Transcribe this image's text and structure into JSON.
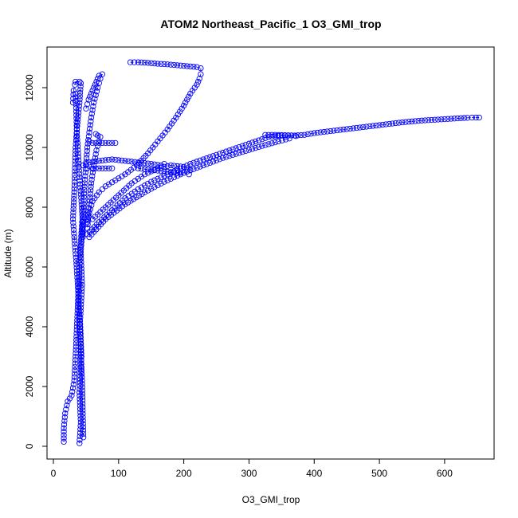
{
  "chart_data": {
    "type": "scatter",
    "title": "ATOM2 Northeast_Pacific_1 O3_GMI_trop",
    "xlabel": "O3_GMI_trop",
    "ylabel": "Altitude (m)",
    "xlim": [
      0,
      660
    ],
    "ylim": [
      0,
      13000
    ],
    "x_ticks": [
      0,
      100,
      200,
      300,
      400,
      500,
      600
    ],
    "y_ticks": [
      0,
      2000,
      4000,
      6000,
      8000,
      10000,
      12000
    ],
    "grid": false,
    "legend": "none",
    "marker": "open-circle",
    "color": "#0000ff",
    "series": [
      {
        "values": [
          [
            40,
            100
          ],
          [
            42,
            800
          ],
          [
            40,
            1800
          ],
          [
            43,
            3000
          ],
          [
            41,
            4200
          ],
          [
            44,
            5400
          ],
          [
            42,
            6500
          ],
          [
            45,
            7400
          ],
          [
            43,
            8200
          ],
          [
            40,
            9000
          ],
          [
            38,
            9800
          ],
          [
            36,
            10500
          ],
          [
            35,
            11200
          ],
          [
            34,
            11800
          ]
        ]
      },
      {
        "values": [
          [
            16,
            150
          ],
          [
            16,
            600
          ],
          [
            18,
            1100
          ],
          [
            22,
            1500
          ],
          [
            28,
            1700
          ],
          [
            32,
            2200
          ],
          [
            34,
            3000
          ],
          [
            36,
            4000
          ],
          [
            38,
            5000
          ],
          [
            40,
            6000
          ],
          [
            42,
            6800
          ],
          [
            44,
            7500
          ]
        ]
      },
      {
        "values": [
          [
            30,
            11500
          ],
          [
            31,
            11900
          ],
          [
            33,
            12100
          ],
          [
            34,
            12200
          ],
          [
            40,
            12200
          ],
          [
            42,
            12150
          ],
          [
            40,
            11500
          ],
          [
            36,
            10600
          ],
          [
            34,
            10000
          ],
          [
            33,
            9200
          ],
          [
            32,
            8500
          ],
          [
            30,
            7600
          ],
          [
            32,
            7000
          ],
          [
            35,
            6200
          ],
          [
            38,
            5200
          ],
          [
            40,
            4200
          ],
          [
            42,
            3200
          ],
          [
            44,
            2200
          ],
          [
            45,
            1200
          ],
          [
            46,
            300
          ]
        ]
      },
      {
        "values": [
          [
            50,
            11300
          ],
          [
            54,
            11600
          ],
          [
            58,
            11800
          ],
          [
            62,
            12000
          ],
          [
            66,
            12200
          ],
          [
            70,
            12400
          ],
          [
            75,
            12450
          ],
          [
            72,
            12300
          ],
          [
            68,
            12000
          ],
          [
            62,
            11500
          ],
          [
            58,
            11000
          ],
          [
            55,
            10500
          ],
          [
            52,
            10000
          ],
          [
            50,
            9400
          ],
          [
            48,
            8800
          ],
          [
            46,
            8000
          ],
          [
            45,
            7000
          ]
        ]
      },
      {
        "values": [
          [
            118,
            12850
          ],
          [
            130,
            12850
          ],
          [
            145,
            12830
          ],
          [
            160,
            12800
          ],
          [
            175,
            12780
          ],
          [
            190,
            12750
          ],
          [
            205,
            12720
          ],
          [
            220,
            12690
          ],
          [
            226,
            12650
          ],
          [
            226,
            12450
          ],
          [
            224,
            12300
          ],
          [
            220,
            12100
          ],
          [
            210,
            11800
          ],
          [
            200,
            11400
          ],
          [
            188,
            11000
          ],
          [
            175,
            10600
          ],
          [
            160,
            10200
          ],
          [
            145,
            9800
          ],
          [
            128,
            9400
          ],
          [
            110,
            9100
          ],
          [
            95,
            8900
          ],
          [
            80,
            8700
          ],
          [
            70,
            8500
          ],
          [
            60,
            8200
          ],
          [
            55,
            7800
          ],
          [
            52,
            7300
          ]
        ]
      },
      {
        "values": [
          [
            55,
            10200
          ],
          [
            60,
            10150
          ],
          [
            70,
            10150
          ],
          [
            80,
            10150
          ],
          [
            90,
            10150
          ],
          [
            95,
            10150
          ]
        ]
      },
      {
        "values": [
          [
            52,
            9300
          ],
          [
            60,
            9300
          ],
          [
            70,
            9300
          ],
          [
            80,
            9300
          ],
          [
            90,
            9300
          ]
        ]
      },
      {
        "values": [
          [
            65,
            10450
          ],
          [
            68,
            10400
          ],
          [
            72,
            10350
          ],
          [
            70,
            10200
          ],
          [
            66,
            9900
          ],
          [
            62,
            9400
          ],
          [
            58,
            8800
          ],
          [
            55,
            8100
          ],
          [
            52,
            7500
          ]
        ]
      },
      {
        "values": [
          [
            45,
            9400
          ],
          [
            55,
            9500
          ],
          [
            70,
            9550
          ],
          [
            90,
            9600
          ],
          [
            110,
            9550
          ],
          [
            130,
            9500
          ],
          [
            150,
            9450
          ],
          [
            165,
            9400
          ],
          [
            170,
            9450
          ]
        ]
      },
      {
        "values": [
          [
            130,
            9300
          ],
          [
            150,
            9250
          ],
          [
            170,
            9200
          ],
          [
            190,
            9150
          ],
          [
            200,
            9150
          ],
          [
            208,
            9100
          ]
        ]
      },
      {
        "values": [
          [
            60,
            7600
          ],
          [
            80,
            8000
          ],
          [
            100,
            8400
          ],
          [
            120,
            8800
          ],
          [
            140,
            9100
          ],
          [
            160,
            9300
          ],
          [
            180,
            9400
          ],
          [
            200,
            9350
          ],
          [
            210,
            9250
          ]
        ]
      },
      {
        "values": [
          [
            52,
            7100
          ],
          [
            70,
            7500
          ],
          [
            90,
            7900
          ],
          [
            110,
            8300
          ],
          [
            130,
            8600
          ],
          [
            150,
            8850
          ],
          [
            170,
            9050
          ],
          [
            190,
            9250
          ],
          [
            210,
            9450
          ],
          [
            230,
            9600
          ],
          [
            250,
            9750
          ],
          [
            270,
            9900
          ],
          [
            290,
            10050
          ],
          [
            310,
            10200
          ],
          [
            330,
            10350
          ],
          [
            350,
            10400
          ],
          [
            365,
            10400
          ],
          [
            372,
            10380
          ]
        ]
      },
      {
        "values": [
          [
            55,
            7000
          ],
          [
            80,
            7600
          ],
          [
            110,
            8100
          ],
          [
            140,
            8500
          ],
          [
            170,
            8850
          ],
          [
            200,
            9150
          ],
          [
            230,
            9400
          ],
          [
            260,
            9650
          ],
          [
            290,
            9850
          ],
          [
            320,
            10050
          ],
          [
            345,
            10200
          ],
          [
            362,
            10300
          ]
        ]
      },
      {
        "values": [
          [
            325,
            10420
          ],
          [
            340,
            10420
          ],
          [
            355,
            10410
          ],
          [
            370,
            10400
          ],
          [
            385,
            10420
          ],
          [
            400,
            10480
          ],
          [
            415,
            10520
          ],
          [
            430,
            10560
          ],
          [
            445,
            10600
          ],
          [
            460,
            10640
          ],
          [
            475,
            10680
          ],
          [
            490,
            10720
          ],
          [
            505,
            10760
          ],
          [
            520,
            10800
          ],
          [
            535,
            10840
          ],
          [
            550,
            10870
          ],
          [
            565,
            10900
          ],
          [
            580,
            10920
          ],
          [
            595,
            10940
          ],
          [
            610,
            10960
          ],
          [
            625,
            10980
          ],
          [
            635,
            10990
          ],
          [
            642,
            11000
          ],
          [
            648,
            11000
          ],
          [
            653,
            11000
          ]
        ]
      }
    ]
  }
}
